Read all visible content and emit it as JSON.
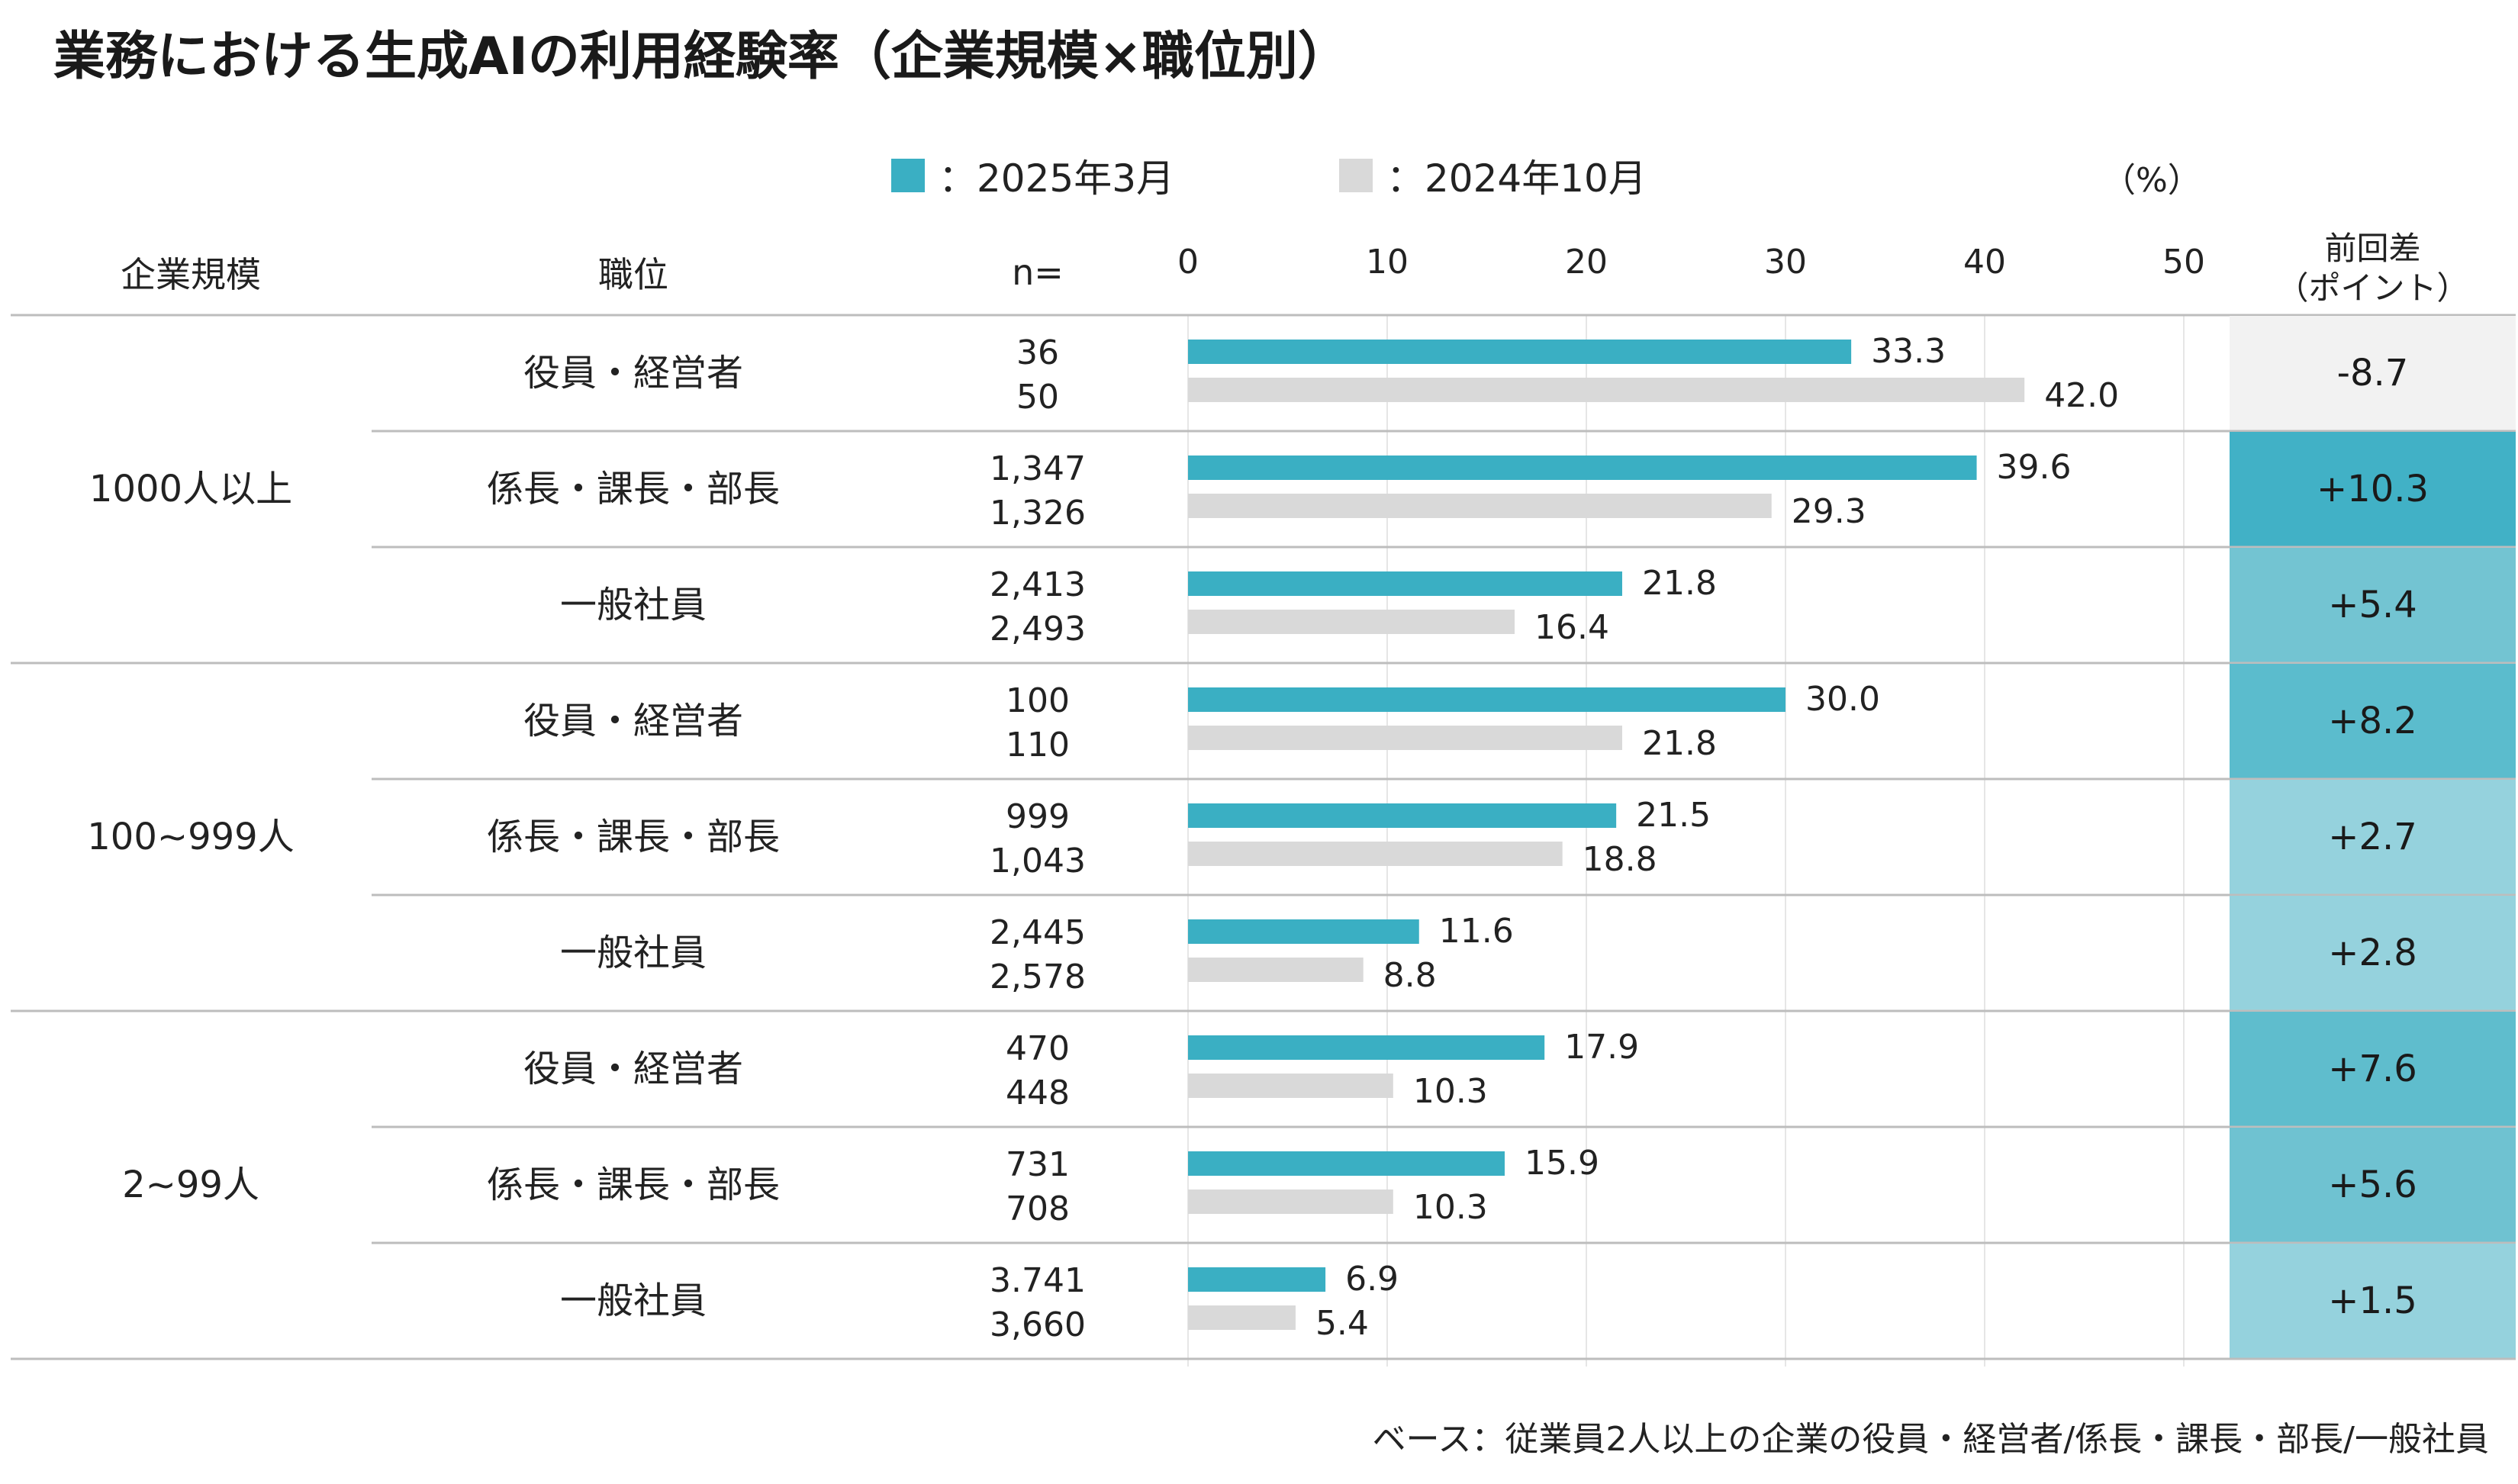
{
  "title": "業務における生成AIの利用経験率（企業規模×職位別）",
  "legend": [
    {
      "label": "：2025年3月",
      "color": "#3aafc3"
    },
    {
      "label": "：2024年10月",
      "color": "#d9d9d9"
    }
  ],
  "unit": "（%）",
  "headers": {
    "company_size": "企業規模",
    "position": "職位",
    "n": "n=",
    "diff_line1": "前回差",
    "diff_line2": "（ポイント）"
  },
  "footnote": "ベース：従業員2人以上の企業の役員・経営者/係長・課長・部長/一般社員",
  "chart_data": {
    "type": "bar",
    "orientation": "horizontal",
    "xlim": [
      0,
      50
    ],
    "x_ticks": [
      "0",
      "10",
      "20",
      "30",
      "40",
      "50"
    ],
    "grid": true,
    "series_colors": {
      "2025年3月": "#3aafc3",
      "2024年10月": "#d9d9d9"
    },
    "groups": [
      {
        "company_size": "1000人以上",
        "rows": [
          {
            "position": "役員・経営者",
            "n": [
              "36",
              "50"
            ],
            "values": [
              33.3,
              42.0
            ],
            "labels": [
              "33.3",
              "42.0"
            ],
            "diff": "-8.7",
            "diff_color": "#f2f2f2"
          },
          {
            "position": "係長・課長・部長",
            "n": [
              "1,347",
              "1,326"
            ],
            "values": [
              39.6,
              29.3
            ],
            "labels": [
              "39.6",
              "29.3"
            ],
            "diff": "+10.3",
            "diff_color": "#41b1c6"
          },
          {
            "position": "一般社員",
            "n": [
              "2,413",
              "2,493"
            ],
            "values": [
              21.8,
              16.4
            ],
            "labels": [
              "21.8",
              "16.4"
            ],
            "diff": "+5.4",
            "diff_color": "#73c4d2"
          }
        ]
      },
      {
        "company_size": "100~999人",
        "rows": [
          {
            "position": "役員・経営者",
            "n": [
              "100",
              "110"
            ],
            "values": [
              30.0,
              21.8
            ],
            "labels": [
              "30.0",
              "21.8"
            ],
            "diff": "+8.2",
            "diff_color": "#5bbccd"
          },
          {
            "position": "係長・課長・部長",
            "n": [
              "999",
              "1,043"
            ],
            "values": [
              21.5,
              18.8
            ],
            "labels": [
              "21.5",
              "18.8"
            ],
            "diff": "+2.7",
            "diff_color": "#95d2dd"
          },
          {
            "position": "一般社員",
            "n": [
              "2,445",
              "2,578"
            ],
            "values": [
              11.6,
              8.8
            ],
            "labels": [
              "11.6",
              "8.8"
            ],
            "diff": "+2.8",
            "diff_color": "#95d2dd"
          }
        ]
      },
      {
        "company_size": "2~99人",
        "rows": [
          {
            "position": "役員・経営者",
            "n": [
              "470",
              "448"
            ],
            "values": [
              17.9,
              10.3
            ],
            "labels": [
              "17.9",
              "10.3"
            ],
            "diff": "+7.6",
            "diff_color": "#5fbdcd"
          },
          {
            "position": "係長・課長・部長",
            "n": [
              "731",
              "708"
            ],
            "values": [
              15.9,
              10.3
            ],
            "labels": [
              "15.9",
              "10.3"
            ],
            "diff": "+5.6",
            "diff_color": "#6fc2d1"
          },
          {
            "position": "一般社員",
            "n": [
              "3.741",
              "3,660"
            ],
            "values": [
              6.9,
              5.4
            ],
            "labels": [
              "6.9",
              "5.4"
            ],
            "diff": "+1.5",
            "diff_color": "#95d2dd"
          }
        ]
      }
    ]
  }
}
